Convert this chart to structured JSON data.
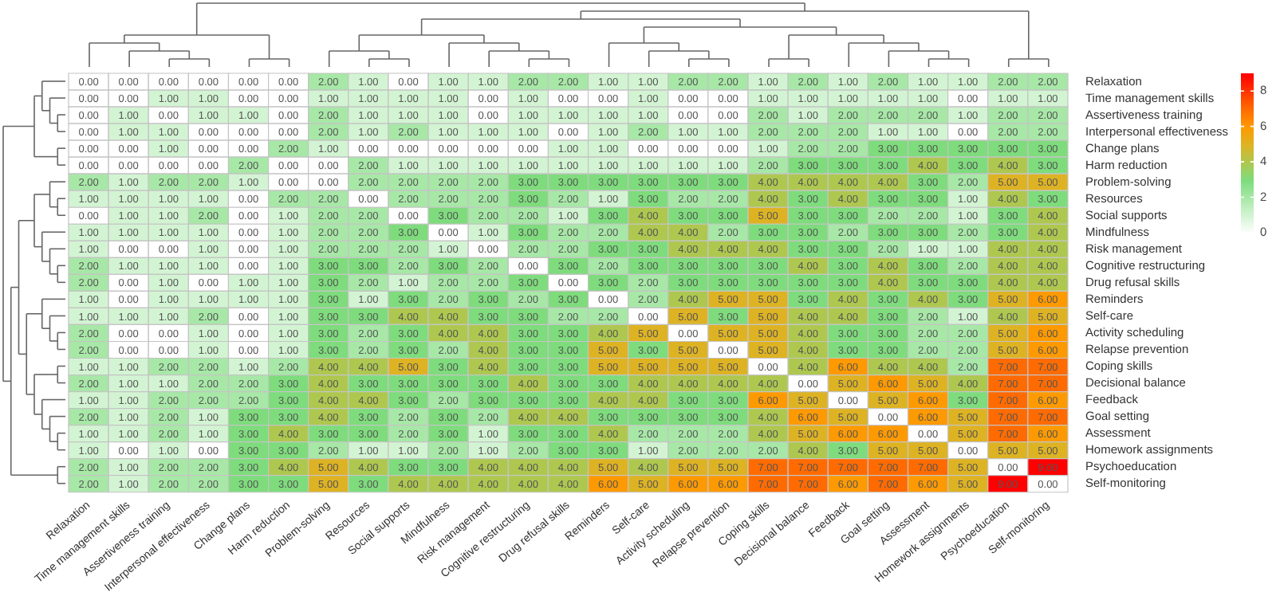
{
  "chart_data": {
    "type": "heatmap",
    "categories": [
      "Relaxation",
      "Time management skills",
      "Assertiveness training",
      "Interpersonal effectiveness",
      "Change plans",
      "Harm reduction",
      "Problem-solving",
      "Resources",
      "Social supports",
      "Mindfulness",
      "Risk management",
      "Cognitive restructuring",
      "Drug refusal skills",
      "Reminders",
      "Self-care",
      "Activity scheduling",
      "Relapse prevention",
      "Coping skills",
      "Decisional balance",
      "Feedback",
      "Goal setting",
      "Assessment",
      "Homework assignments",
      "Psychoeducation",
      "Self-monitoring"
    ],
    "y_categories": [
      "Relaxation",
      "Time management skills",
      "Assertiveness training",
      "Interpersonal effectiveness",
      "Change plans",
      "Harm reduction",
      "Problem-solving",
      "Resources",
      "Social supports",
      "Mindfulness",
      "Risk management",
      "Cognitive restructuring",
      "Drug refusal skills",
      "Reminders",
      "Self-care",
      "Activity scheduling",
      "Relapse prevention",
      "Coping skills",
      "Decisional balance",
      "Feedback",
      "Goal setting",
      "Assessment",
      "Homework assignments",
      "Psychoeducation",
      "Self-monitoring"
    ],
    "cells": [
      [
        0,
        0,
        0,
        0,
        0,
        0,
        2,
        1,
        0,
        1,
        1,
        2,
        2,
        1,
        1,
        2,
        2,
        1,
        2,
        1,
        2,
        1,
        1,
        2,
        2
      ],
      [
        0,
        0,
        1,
        1,
        0,
        0,
        1,
        1,
        1,
        1,
        0,
        1,
        0,
        0,
        1,
        0,
        0,
        1,
        1,
        1,
        1,
        1,
        0,
        1,
        1
      ],
      [
        0,
        1,
        0,
        1,
        1,
        0,
        2,
        1,
        1,
        1,
        0,
        1,
        1,
        1,
        1,
        0,
        0,
        2,
        1,
        2,
        2,
        2,
        1,
        2,
        2
      ],
      [
        0,
        1,
        1,
        0,
        0,
        0,
        2,
        1,
        2,
        1,
        1,
        1,
        0,
        1,
        2,
        1,
        1,
        2,
        2,
        2,
        1,
        1,
        0,
        2,
        2
      ],
      [
        0,
        0,
        1,
        0,
        0,
        2,
        1,
        0,
        0,
        0,
        0,
        0,
        1,
        1,
        0,
        0,
        0,
        1,
        2,
        2,
        3,
        3,
        3,
        3,
        3
      ],
      [
        0,
        0,
        0,
        0,
        2,
        0,
        0,
        2,
        1,
        1,
        1,
        1,
        1,
        1,
        1,
        1,
        1,
        2,
        3,
        3,
        3,
        4,
        3,
        4,
        3
      ],
      [
        2,
        1,
        2,
        2,
        1,
        0,
        0,
        2,
        2,
        2,
        2,
        3,
        3,
        3,
        3,
        3,
        3,
        4,
        4,
        4,
        4,
        3,
        2,
        5,
        5
      ],
      [
        1,
        1,
        1,
        1,
        0,
        2,
        2,
        0,
        2,
        2,
        2,
        3,
        2,
        1,
        3,
        2,
        2,
        4,
        3,
        4,
        3,
        3,
        1,
        4,
        3
      ],
      [
        0,
        1,
        1,
        2,
        0,
        1,
        2,
        2,
        0,
        3,
        2,
        2,
        1,
        3,
        4,
        3,
        3,
        5,
        3,
        3,
        2,
        2,
        1,
        3,
        4
      ],
      [
        1,
        1,
        1,
        1,
        0,
        1,
        2,
        2,
        3,
        0,
        1,
        3,
        2,
        2,
        4,
        4,
        2,
        3,
        3,
        2,
        3,
        3,
        2,
        3,
        4
      ],
      [
        1,
        0,
        0,
        1,
        0,
        1,
        2,
        2,
        2,
        1,
        0,
        2,
        2,
        3,
        3,
        4,
        4,
        4,
        3,
        3,
        2,
        1,
        1,
        4,
        4
      ],
      [
        2,
        1,
        1,
        1,
        0,
        1,
        3,
        3,
        2,
        3,
        2,
        0,
        3,
        2,
        3,
        3,
        3,
        3,
        4,
        3,
        4,
        3,
        2,
        4,
        4
      ],
      [
        2,
        0,
        1,
        0,
        1,
        1,
        3,
        2,
        1,
        2,
        2,
        3,
        0,
        3,
        2,
        3,
        3,
        3,
        3,
        3,
        4,
        3,
        3,
        4,
        4
      ],
      [
        1,
        0,
        1,
        1,
        1,
        1,
        3,
        1,
        3,
        2,
        3,
        2,
        3,
        0,
        2,
        4,
        5,
        5,
        3,
        4,
        3,
        4,
        3,
        5,
        6
      ],
      [
        1,
        1,
        1,
        2,
        0,
        1,
        3,
        3,
        4,
        4,
        3,
        3,
        2,
        2,
        0,
        5,
        3,
        5,
        4,
        4,
        3,
        2,
        1,
        4,
        5
      ],
      [
        2,
        0,
        0,
        1,
        0,
        1,
        3,
        2,
        3,
        4,
        4,
        3,
        3,
        4,
        5,
        0,
        5,
        5,
        4,
        3,
        3,
        2,
        2,
        5,
        6
      ],
      [
        2,
        0,
        0,
        1,
        0,
        1,
        3,
        2,
        3,
        2,
        4,
        3,
        3,
        5,
        3,
        5,
        0,
        5,
        4,
        3,
        3,
        2,
        2,
        5,
        6
      ],
      [
        1,
        1,
        2,
        2,
        1,
        2,
        4,
        4,
        5,
        3,
        4,
        3,
        3,
        5,
        5,
        5,
        5,
        0,
        4,
        6,
        4,
        4,
        2,
        7,
        7
      ],
      [
        2,
        1,
        1,
        2,
        2,
        3,
        4,
        3,
        3,
        3,
        3,
        4,
        3,
        3,
        4,
        4,
        4,
        4,
        0,
        5,
        6,
        5,
        4,
        7,
        7
      ],
      [
        1,
        1,
        2,
        2,
        2,
        3,
        4,
        4,
        3,
        2,
        3,
        3,
        3,
        4,
        4,
        3,
        3,
        6,
        5,
        0,
        5,
        6,
        3,
        7,
        6
      ],
      [
        2,
        1,
        2,
        1,
        3,
        3,
        4,
        3,
        2,
        3,
        2,
        4,
        4,
        3,
        3,
        3,
        3,
        4,
        6,
        5,
        0,
        6,
        5,
        7,
        7
      ],
      [
        1,
        1,
        2,
        1,
        3,
        4,
        3,
        3,
        2,
        3,
        1,
        3,
        3,
        4,
        2,
        2,
        2,
        4,
        5,
        6,
        6,
        0,
        5,
        7,
        6
      ],
      [
        1,
        0,
        1,
        0,
        3,
        3,
        2,
        1,
        1,
        2,
        1,
        2,
        3,
        3,
        1,
        2,
        2,
        2,
        4,
        3,
        5,
        5,
        0,
        5,
        5
      ],
      [
        2,
        1,
        2,
        2,
        3,
        4,
        5,
        4,
        3,
        3,
        4,
        4,
        4,
        5,
        4,
        5,
        5,
        7,
        7,
        7,
        7,
        7,
        5,
        0,
        9
      ],
      [
        2,
        1,
        2,
        2,
        3,
        3,
        5,
        3,
        4,
        4,
        4,
        4,
        4,
        6,
        5,
        6,
        6,
        7,
        7,
        6,
        7,
        6,
        5,
        9,
        0
      ]
    ],
    "cell_labels": [
      [
        "0.00",
        "0.00",
        "0.00",
        "0.00",
        "0.00",
        "0.00",
        "2.00",
        "1.00",
        "0.00",
        "1.00",
        "1.00",
        "2.00",
        "2.00",
        "1.00",
        "1.00",
        "2.00",
        "2.00",
        "1.00",
        "2.00",
        "1.00",
        "2.00",
        "1.00",
        "1.00",
        "2.00",
        "2.00"
      ],
      [
        "0.00",
        "0.00",
        "1.00",
        "1.00",
        "0.00",
        "0.00",
        "1.00",
        "1.00",
        "1.00",
        "1.00",
        "0.00",
        "1.00",
        "0.00",
        "0.00",
        "1.00",
        "0.00",
        "0.00",
        "1.00",
        "1.00",
        "1.00",
        "1.00",
        "1.00",
        "0.00",
        "1.00",
        "1.00"
      ],
      [
        "0.00",
        "1.00",
        "0.00",
        "1.00",
        "1.00",
        "0.00",
        "2.00",
        "1.00",
        "1.00",
        "1.00",
        "0.00",
        "1.00",
        "1.00",
        "1.00",
        "1.00",
        "0.00",
        "0.00",
        "2.00",
        "1.00",
        "2.00",
        "2.00",
        "2.00",
        "1.00",
        "2.00",
        "2.00"
      ],
      [
        "0.00",
        "1.00",
        "1.00",
        "0.00",
        "0.00",
        "0.00",
        "2.00",
        "1.00",
        "2.00",
        "1.00",
        "1.00",
        "1.00",
        "0.00",
        "1.00",
        "2.00",
        "1.00",
        "1.00",
        "2.00",
        "2.00",
        "2.00",
        "1.00",
        "1.00",
        "0.00",
        "2.00",
        "2.00"
      ],
      [
        "0.00",
        "0.00",
        "1.00",
        "0.00",
        "0.00",
        "2.00",
        "1.00",
        "0.00",
        "0.00",
        "0.00",
        "0.00",
        "0.00",
        "1.00",
        "1.00",
        "0.00",
        "0.00",
        "0.00",
        "1.00",
        "2.00",
        "2.00",
        "3.00",
        "3.00",
        "3.00",
        "3.00",
        "3.00"
      ],
      [
        "0.00",
        "0.00",
        "0.00",
        "0.00",
        "2.00",
        "0.00",
        "0.00",
        "2.00",
        "1.00",
        "1.00",
        "1.00",
        "1.00",
        "1.00",
        "1.00",
        "1.00",
        "1.00",
        "1.00",
        "2.00",
        "3.00",
        "3.00",
        "3.00",
        "4.00",
        "3.00",
        "4.00",
        "3.00"
      ],
      [
        "2.00",
        "1.00",
        "2.00",
        "2.00",
        "1.00",
        "0.00",
        "0.00",
        "2.00",
        "2.00",
        "2.00",
        "2.00",
        "3.00",
        "3.00",
        "3.00",
        "3.00",
        "3.00",
        "3.00",
        "4.00",
        "4.00",
        "4.00",
        "4.00",
        "3.00",
        "2.00",
        "5.00",
        "5.00"
      ],
      [
        "1.00",
        "1.00",
        "1.00",
        "1.00",
        "0.00",
        "2.00",
        "2.00",
        "0.00",
        "2.00",
        "2.00",
        "2.00",
        "3.00",
        "2.00",
        "1.00",
        "3.00",
        "2.00",
        "2.00",
        "4.00",
        "3.00",
        "4.00",
        "3.00",
        "3.00",
        "1.00",
        "4.00",
        "3.00"
      ],
      [
        "0.00",
        "1.00",
        "1.00",
        "2.00",
        "0.00",
        "1.00",
        "2.00",
        "2.00",
        "0.00",
        "3.00",
        "2.00",
        "2.00",
        "1.00",
        "3.00",
        "4.00",
        "3.00",
        "3.00",
        "5.00",
        "3.00",
        "3.00",
        "2.00",
        "2.00",
        "1.00",
        "3.00",
        "4.00"
      ],
      [
        "1.00",
        "1.00",
        "1.00",
        "1.00",
        "0.00",
        "1.00",
        "2.00",
        "2.00",
        "3.00",
        "0.00",
        "1.00",
        "3.00",
        "2.00",
        "2.00",
        "4.00",
        "4.00",
        "2.00",
        "3.00",
        "3.00",
        "2.00",
        "3.00",
        "3.00",
        "2.00",
        "3.00",
        "4.00"
      ],
      [
        "1.00",
        "0.00",
        "0.00",
        "1.00",
        "0.00",
        "1.00",
        "2.00",
        "2.00",
        "2.00",
        "1.00",
        "0.00",
        "2.00",
        "2.00",
        "3.00",
        "3.00",
        "4.00",
        "4.00",
        "4.00",
        "3.00",
        "3.00",
        "2.00",
        "1.00",
        "1.00",
        "4.00",
        "4.00"
      ],
      [
        "2.00",
        "1.00",
        "1.00",
        "1.00",
        "0.00",
        "1.00",
        "3.00",
        "3.00",
        "2.00",
        "3.00",
        "2.00",
        "0.00",
        "3.00",
        "2.00",
        "3.00",
        "3.00",
        "3.00",
        "3.00",
        "4.00",
        "3.00",
        "4.00",
        "3.00",
        "2.00",
        "4.00",
        "4.00"
      ],
      [
        "2.00",
        "0.00",
        "1.00",
        "0.00",
        "1.00",
        "1.00",
        "3.00",
        "2.00",
        "1.00",
        "2.00",
        "2.00",
        "3.00",
        "0.00",
        "3.00",
        "2.00",
        "3.00",
        "3.00",
        "3.00",
        "3.00",
        "3.00",
        "4.00",
        "3.00",
        "3.00",
        "4.00",
        "4.00"
      ],
      [
        "1.00",
        "0.00",
        "1.00",
        "1.00",
        "1.00",
        "1.00",
        "3.00",
        "1.00",
        "3.00",
        "2.00",
        "3.00",
        "2.00",
        "3.00",
        "0.00",
        "2.00",
        "4.00",
        "5.00",
        "5.00",
        "3.00",
        "4.00",
        "3.00",
        "4.00",
        "3.00",
        "5.00",
        "6.00"
      ],
      [
        "1.00",
        "1.00",
        "1.00",
        "2.00",
        "0.00",
        "1.00",
        "3.00",
        "3.00",
        "4.00",
        "4.00",
        "3.00",
        "3.00",
        "2.00",
        "2.00",
        "0.00",
        "5.00",
        "3.00",
        "5.00",
        "4.00",
        "4.00",
        "3.00",
        "2.00",
        "1.00",
        "4.00",
        "5.00"
      ],
      [
        "2.00",
        "0.00",
        "0.00",
        "1.00",
        "0.00",
        "1.00",
        "3.00",
        "2.00",
        "3.00",
        "4.00",
        "4.00",
        "3.00",
        "3.00",
        "4.00",
        "5.00",
        "0.00",
        "5.00",
        "5.00",
        "4.00",
        "3.00",
        "3.00",
        "2.00",
        "2.00",
        "5.00",
        "6.00"
      ],
      [
        "2.00",
        "0.00",
        "0.00",
        "1.00",
        "0.00",
        "1.00",
        "3.00",
        "2.00",
        "3.00",
        "2.00",
        "4.00",
        "3.00",
        "3.00",
        "5.00",
        "3.00",
        "5.00",
        "0.00",
        "5.00",
        "4.00",
        "3.00",
        "3.00",
        "2.00",
        "2.00",
        "5.00",
        "6.00"
      ],
      [
        "1.00",
        "1.00",
        "2.00",
        "2.00",
        "1.00",
        "2.00",
        "4.00",
        "4.00",
        "5.00",
        "3.00",
        "4.00",
        "3.00",
        "3.00",
        "5.00",
        "5.00",
        "5.00",
        "5.00",
        "0.00",
        "4.00",
        "6.00",
        "4.00",
        "4.00",
        "2.00",
        "7.00",
        "7.00"
      ],
      [
        "2.00",
        "1.00",
        "1.00",
        "2.00",
        "2.00",
        "3.00",
        "4.00",
        "3.00",
        "3.00",
        "3.00",
        "3.00",
        "4.00",
        "3.00",
        "3.00",
        "4.00",
        "4.00",
        "4.00",
        "4.00",
        "0.00",
        "5.00",
        "6.00",
        "5.00",
        "4.00",
        "7.00",
        "7.00"
      ],
      [
        "1.00",
        "1.00",
        "2.00",
        "2.00",
        "2.00",
        "3.00",
        "4.00",
        "4.00",
        "3.00",
        "2.00",
        "3.00",
        "3.00",
        "3.00",
        "4.00",
        "4.00",
        "3.00",
        "3.00",
        "6.00",
        "5.00",
        "0.00",
        "5.00",
        "6.00",
        "3.00",
        "7.00",
        "6.00"
      ],
      [
        "2.00",
        "1.00",
        "2.00",
        "1.00",
        "3.00",
        "3.00",
        "4.00",
        "3.00",
        "2.00",
        "3.00",
        "2.00",
        "4.00",
        "4.00",
        "3.00",
        "3.00",
        "3.00",
        "3.00",
        "4.00",
        "6.00",
        "5.00",
        "0.00",
        "6.00",
        "5.00",
        "7.00",
        "7.00"
      ],
      [
        "1.00",
        "1.00",
        "2.00",
        "1.00",
        "3.00",
        "4.00",
        "3.00",
        "3.00",
        "2.00",
        "3.00",
        "1.00",
        "3.00",
        "3.00",
        "4.00",
        "2.00",
        "2.00",
        "2.00",
        "4.00",
        "5.00",
        "6.00",
        "6.00",
        "0.00",
        "5.00",
        "7.00",
        "6.00"
      ],
      [
        "1.00",
        "0.00",
        "1.00",
        "0.00",
        "3.00",
        "3.00",
        "2.00",
        "1.00",
        "1.00",
        "2.00",
        "1.00",
        "2.00",
        "3.00",
        "3.00",
        "1.00",
        "2.00",
        "2.00",
        "2.00",
        "4.00",
        "3.00",
        "5.00",
        "5.00",
        "0.00",
        "5.00",
        "5.00"
      ],
      [
        "2.00",
        "1.00",
        "2.00",
        "2.00",
        "3.00",
        "4.00",
        "5.00",
        "4.00",
        "3.00",
        "3.00",
        "4.00",
        "4.00",
        "4.00",
        "5.00",
        "4.00",
        "5.00",
        "5.00",
        "7.00",
        "7.00",
        "7.00",
        "7.00",
        "7.00",
        "5.00",
        "0.00",
        "9.00"
      ],
      [
        "2.00",
        "1.00",
        "2.00",
        "2.00",
        "3.00",
        "3.00",
        "5.00",
        "3.00",
        "4.00",
        "4.00",
        "4.00",
        "4.00",
        "4.00",
        "6.00",
        "5.00",
        "6.00",
        "6.00",
        "7.00",
        "7.00",
        "6.00",
        "7.00",
        "6.00",
        "5.00",
        "9.00",
        "0.00"
      ]
    ],
    "clim": [
      0,
      9
    ],
    "cticks": [
      0,
      2,
      4,
      6,
      8
    ]
  }
}
